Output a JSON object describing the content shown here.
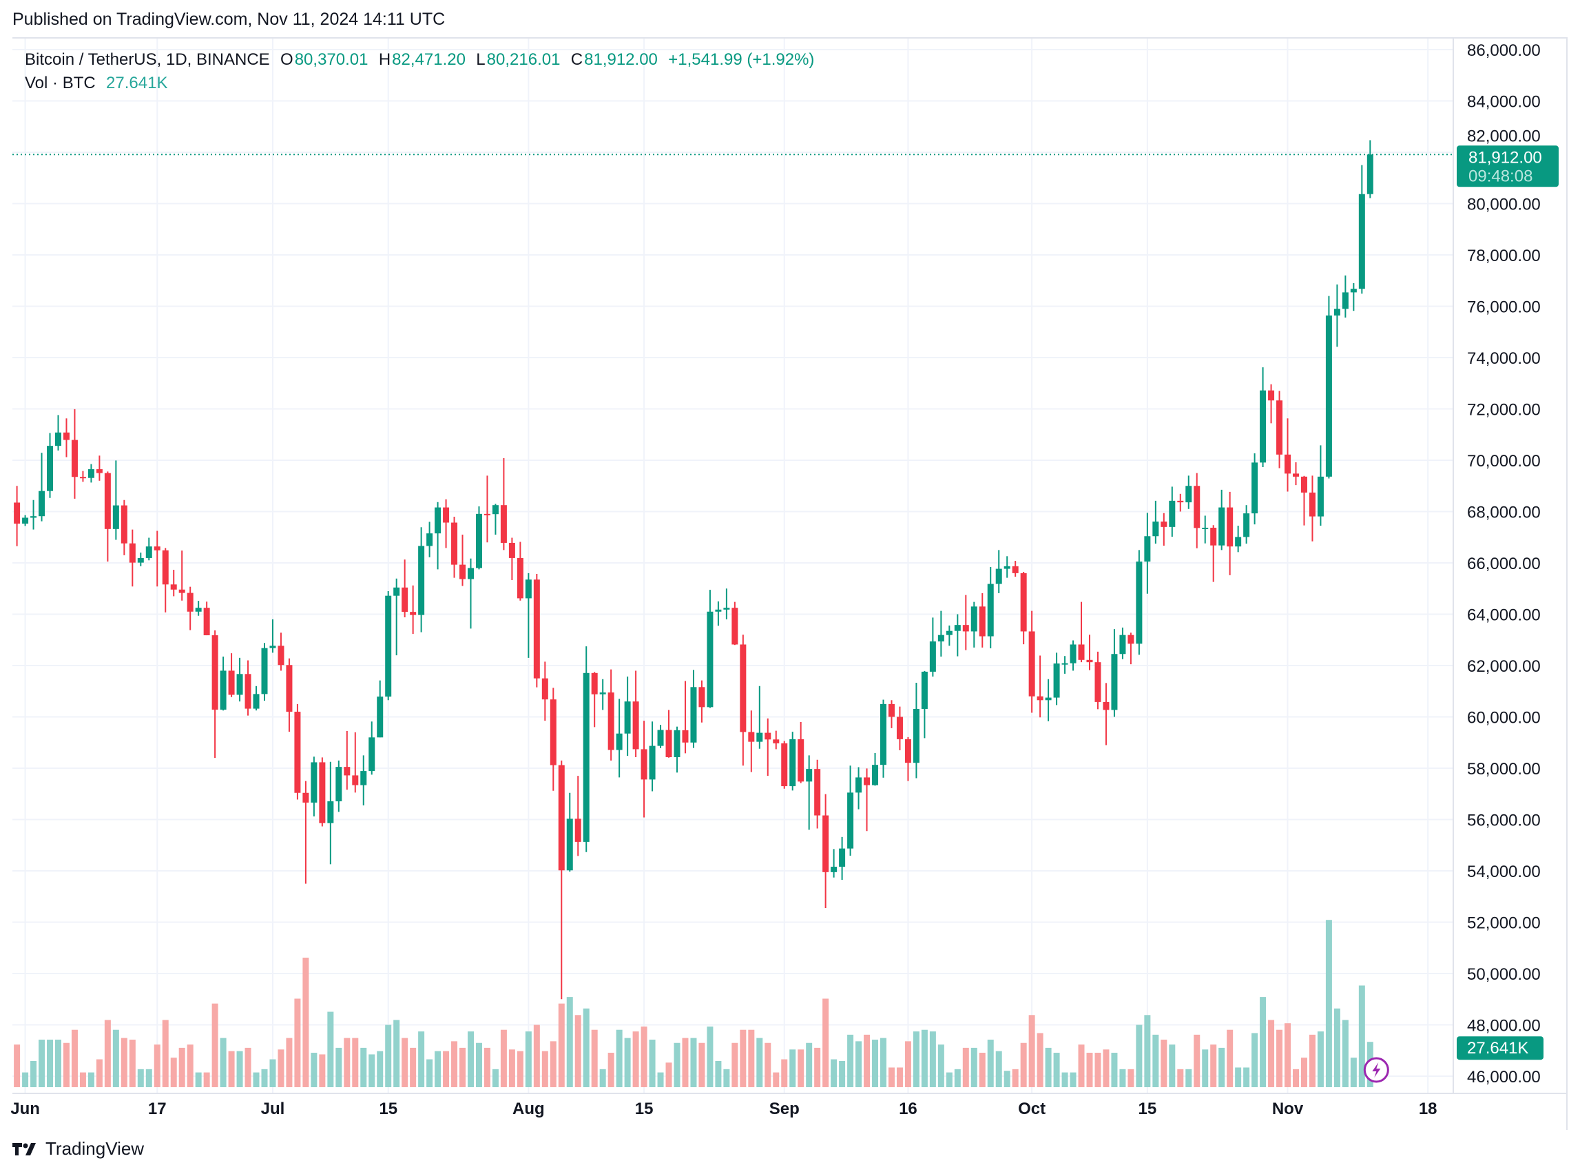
{
  "header": {
    "published": "Published on TradingView.com, Nov 11, 2024 14:11 UTC"
  },
  "legend": {
    "symbol": "Bitcoin / TetherUS, 1D, BINANCE",
    "o_label": "O",
    "o": "80,370.01",
    "h_label": "H",
    "h": "82,471.20",
    "l_label": "L",
    "l": "80,216.01",
    "c_label": "C",
    "c": "81,912.00",
    "change": "+1,541.99 (+1.92%)",
    "vol_label": "Vol · BTC",
    "vol": "27.641K"
  },
  "price_tag": {
    "price": "81,912.00",
    "countdown": "09:48:08"
  },
  "vol_tag": "27.641K",
  "footer": {
    "brand": "TradingView"
  },
  "colors": {
    "up": "#089981",
    "down": "#f23645",
    "vol_up": "#92d2cc",
    "vol_down": "#f7a9a7",
    "grid": "#f0f3fa",
    "accent": "#089981",
    "lightning": "#9c27b0"
  },
  "chart_data": {
    "type": "candlestick",
    "interval": "1D",
    "x_start": "2024-05-31",
    "ylim": [
      46000,
      86000
    ],
    "y_ticks": [
      "86,000.00",
      "84,000.00",
      "82,000.00",
      "80,000.00",
      "78,000.00",
      "76,000.00",
      "74,000.00",
      "72,000.00",
      "70,000.00",
      "68,000.00",
      "66,000.00",
      "64,000.00",
      "62,000.00",
      "60,000.00",
      "58,000.00",
      "56,000.00",
      "54,000.00",
      "52,000.00",
      "50,000.00",
      "48,000.00",
      "46,000.00"
    ],
    "y_tick_values": [
      86000,
      84000,
      82000,
      80000,
      78000,
      76000,
      74000,
      72000,
      70000,
      68000,
      66000,
      64000,
      62000,
      60000,
      58000,
      56000,
      54000,
      52000,
      50000,
      48000,
      46000
    ],
    "x_ticks": [
      {
        "label": "Jun",
        "date": "2024-06-01"
      },
      {
        "label": "17",
        "date": "2024-06-17"
      },
      {
        "label": "Jul",
        "date": "2024-07-01"
      },
      {
        "label": "15",
        "date": "2024-07-15"
      },
      {
        "label": "Aug",
        "date": "2024-08-01"
      },
      {
        "label": "15",
        "date": "2024-08-15"
      },
      {
        "label": "Sep",
        "date": "2024-09-01"
      },
      {
        "label": "16",
        "date": "2024-09-16"
      },
      {
        "label": "Oct",
        "date": "2024-10-01"
      },
      {
        "label": "15",
        "date": "2024-10-15"
      },
      {
        "label": "Nov",
        "date": "2024-11-01"
      },
      {
        "label": "18",
        "date": "2024-11-18"
      }
    ],
    "last_price": 81912.0,
    "ohlc": [
      [
        68350,
        69000,
        66650,
        67530
      ],
      [
        67530,
        67860,
        67440,
        67760
      ],
      [
        67760,
        68450,
        67300,
        67820
      ],
      [
        67820,
        70290,
        67620,
        68800
      ],
      [
        68800,
        71060,
        68530,
        70560
      ],
      [
        70560,
        71760,
        70380,
        71080
      ],
      [
        71080,
        71630,
        70120,
        70790
      ],
      [
        70790,
        71990,
        68500,
        69350
      ],
      [
        69350,
        69580,
        69160,
        69310
      ],
      [
        69310,
        69850,
        69130,
        69650
      ],
      [
        69650,
        70180,
        69200,
        69500
      ],
      [
        69500,
        69560,
        66050,
        67320
      ],
      [
        67320,
        69990,
        66900,
        68240
      ],
      [
        68240,
        68450,
        66300,
        66760
      ],
      [
        66760,
        67300,
        65080,
        66010
      ],
      [
        66010,
        66400,
        65870,
        66190
      ],
      [
        66190,
        66980,
        66100,
        66640
      ],
      [
        66640,
        67250,
        65080,
        66490
      ],
      [
        66490,
        66580,
        64070,
        65160
      ],
      [
        65160,
        65730,
        64700,
        64960
      ],
      [
        64960,
        66480,
        64530,
        64830
      ],
      [
        64830,
        65070,
        63380,
        64100
      ],
      [
        64100,
        64520,
        63940,
        64250
      ],
      [
        64250,
        64490,
        63180,
        63180
      ],
      [
        63180,
        63370,
        58400,
        60280
      ],
      [
        60280,
        62350,
        60250,
        61800
      ],
      [
        61800,
        62480,
        60770,
        60860
      ],
      [
        60860,
        62300,
        60600,
        61670
      ],
      [
        61670,
        62200,
        60050,
        60320
      ],
      [
        60320,
        61200,
        60250,
        60890
      ],
      [
        60890,
        62880,
        60630,
        62680
      ],
      [
        62680,
        63800,
        62500,
        62770
      ],
      [
        62770,
        63280,
        61800,
        62020
      ],
      [
        62020,
        62280,
        59420,
        60200
      ],
      [
        60200,
        60500,
        56780,
        57040
      ],
      [
        57040,
        57500,
        53500,
        56660
      ],
      [
        56660,
        58450,
        56120,
        58230
      ],
      [
        58230,
        58420,
        55730,
        55860
      ],
      [
        55860,
        58250,
        54260,
        56710
      ],
      [
        56710,
        58300,
        56300,
        58050
      ],
      [
        58050,
        59450,
        57160,
        57720
      ],
      [
        57720,
        59400,
        57050,
        57340
      ],
      [
        57340,
        58500,
        56550,
        57890
      ],
      [
        57890,
        59820,
        57750,
        59200
      ],
      [
        59200,
        61420,
        59200,
        60790
      ],
      [
        60790,
        64900,
        60650,
        64720
      ],
      [
        64720,
        65390,
        62400,
        65040
      ],
      [
        65040,
        66130,
        63880,
        64090
      ],
      [
        64090,
        65120,
        63230,
        63970
      ],
      [
        63970,
        67390,
        63300,
        66660
      ],
      [
        66660,
        67600,
        66220,
        67150
      ],
      [
        67150,
        68370,
        65750,
        68160
      ],
      [
        68160,
        68480,
        66580,
        67570
      ],
      [
        67570,
        67800,
        65420,
        65930
      ],
      [
        65930,
        67100,
        65100,
        65370
      ],
      [
        65370,
        66170,
        63440,
        65800
      ],
      [
        65800,
        68200,
        65750,
        67910
      ],
      [
        67910,
        69400,
        66800,
        67900
      ],
      [
        67900,
        68300,
        67100,
        68250
      ],
      [
        68250,
        70080,
        66500,
        66780
      ],
      [
        66780,
        66980,
        65330,
        66190
      ],
      [
        66190,
        66820,
        64530,
        64620
      ],
      [
        64620,
        65600,
        62300,
        65350
      ],
      [
        65350,
        65570,
        61150,
        61500
      ],
      [
        61500,
        62150,
        59850,
        60680
      ],
      [
        60680,
        61130,
        57120,
        58120
      ],
      [
        58120,
        58300,
        49000,
        54020
      ],
      [
        54020,
        57040,
        53970,
        56030
      ],
      [
        56030,
        57700,
        54580,
        55130
      ],
      [
        55130,
        62750,
        54730,
        61710
      ],
      [
        61710,
        61750,
        59600,
        60880
      ],
      [
        60880,
        61470,
        60270,
        60950
      ],
      [
        60950,
        61850,
        58300,
        58710
      ],
      [
        58710,
        60700,
        57640,
        59350
      ],
      [
        59350,
        61570,
        58480,
        60600
      ],
      [
        60600,
        61800,
        58430,
        58740
      ],
      [
        58740,
        59850,
        56080,
        57560
      ],
      [
        57560,
        59820,
        57100,
        58870
      ],
      [
        58870,
        59690,
        58780,
        59490
      ],
      [
        59490,
        60270,
        58410,
        58430
      ],
      [
        58430,
        59620,
        57830,
        59480
      ],
      [
        59480,
        61400,
        58580,
        59000
      ],
      [
        59000,
        61830,
        58790,
        61160
      ],
      [
        61160,
        61420,
        59780,
        60380
      ],
      [
        60380,
        64950,
        60350,
        64100
      ],
      [
        64100,
        64500,
        63550,
        64180
      ],
      [
        64180,
        65000,
        63800,
        64250
      ],
      [
        64250,
        64480,
        62800,
        62820
      ],
      [
        62820,
        63200,
        58100,
        59410
      ],
      [
        59410,
        60250,
        57850,
        59030
      ],
      [
        59030,
        61200,
        58760,
        59380
      ],
      [
        59380,
        59940,
        57700,
        59120
      ],
      [
        59120,
        59460,
        58740,
        58970
      ],
      [
        58970,
        59060,
        57200,
        57300
      ],
      [
        57300,
        59420,
        57130,
        59130
      ],
      [
        59130,
        59800,
        57420,
        57480
      ],
      [
        57480,
        58500,
        55600,
        57970
      ],
      [
        57970,
        58330,
        55650,
        56160
      ],
      [
        56160,
        56990,
        52550,
        53950
      ],
      [
        53950,
        54850,
        53740,
        54160
      ],
      [
        54160,
        55320,
        53650,
        54870
      ],
      [
        54870,
        58100,
        54590,
        57050
      ],
      [
        57050,
        58040,
        56400,
        57640
      ],
      [
        57640,
        57990,
        55550,
        57340
      ],
      [
        57340,
        58590,
        57320,
        58130
      ],
      [
        58130,
        60670,
        57630,
        60500
      ],
      [
        60500,
        60650,
        59560,
        60000
      ],
      [
        60000,
        60400,
        58700,
        59130
      ],
      [
        59130,
        59210,
        57500,
        58210
      ],
      [
        58210,
        61330,
        57610,
        60310
      ],
      [
        60310,
        61790,
        59170,
        61760
      ],
      [
        61760,
        63870,
        61570,
        62940
      ],
      [
        62940,
        64130,
        62350,
        63190
      ],
      [
        63190,
        63560,
        62770,
        63350
      ],
      [
        63350,
        64000,
        62360,
        63580
      ],
      [
        63580,
        64750,
        62600,
        63330
      ],
      [
        63330,
        64480,
        62700,
        64300
      ],
      [
        64300,
        64820,
        62700,
        63140
      ],
      [
        63140,
        65840,
        62670,
        65180
      ],
      [
        65180,
        66500,
        64820,
        65770
      ],
      [
        65770,
        66260,
        65420,
        65870
      ],
      [
        65870,
        66080,
        65460,
        65600
      ],
      [
        65600,
        65650,
        62830,
        63330
      ],
      [
        63330,
        64130,
        60160,
        60800
      ],
      [
        60800,
        62390,
        59980,
        60650
      ],
      [
        60650,
        61470,
        59830,
        60750
      ],
      [
        60750,
        62500,
        60460,
        62080
      ],
      [
        62080,
        62370,
        61680,
        62090
      ],
      [
        62090,
        62980,
        61800,
        62820
      ],
      [
        62820,
        64480,
        62130,
        62220
      ],
      [
        62220,
        63200,
        61820,
        62130
      ],
      [
        62130,
        62540,
        60300,
        60580
      ],
      [
        60580,
        61320,
        58900,
        60270
      ],
      [
        60270,
        63420,
        60000,
        62450
      ],
      [
        62450,
        63480,
        62250,
        63190
      ],
      [
        63190,
        63280,
        62050,
        62850
      ],
      [
        62850,
        66500,
        62420,
        66050
      ],
      [
        66050,
        67950,
        64800,
        67040
      ],
      [
        67040,
        68420,
        66750,
        67610
      ],
      [
        67610,
        67940,
        66670,
        67400
      ],
      [
        67400,
        68970,
        67020,
        68420
      ],
      [
        68420,
        68690,
        68000,
        68360
      ],
      [
        68360,
        69400,
        68100,
        69000
      ],
      [
        69000,
        69500,
        66570,
        67360
      ],
      [
        67360,
        67840,
        66760,
        67370
      ],
      [
        67370,
        67470,
        65260,
        66680
      ],
      [
        66680,
        68850,
        66500,
        68160
      ],
      [
        68160,
        68770,
        65520,
        66640
      ],
      [
        66640,
        67450,
        66420,
        67010
      ],
      [
        67010,
        68250,
        66750,
        67930
      ],
      [
        67930,
        70270,
        67500,
        69910
      ],
      [
        69910,
        73620,
        69730,
        72720
      ],
      [
        72720,
        72960,
        71440,
        72330
      ],
      [
        72330,
        72700,
        69690,
        70220
      ],
      [
        70220,
        71630,
        68780,
        69480
      ],
      [
        69480,
        69920,
        69030,
        69360
      ],
      [
        69360,
        69390,
        67460,
        68740
      ],
      [
        68740,
        69400,
        66840,
        67810
      ],
      [
        67810,
        70580,
        67450,
        69360
      ],
      [
        69360,
        76400,
        69290,
        75640
      ],
      [
        75640,
        76850,
        74420,
        75900
      ],
      [
        75900,
        77200,
        75560,
        76540
      ],
      [
        76540,
        76900,
        75820,
        76680
      ],
      [
        76680,
        81500,
        76490,
        80370
      ],
      [
        80370.01,
        82471.2,
        80216.01,
        81912.0
      ]
    ],
    "volume_k": [
      26,
      9,
      16,
      29,
      29,
      29,
      27,
      35,
      9,
      9,
      17,
      41,
      35,
      30,
      29,
      11,
      11,
      26,
      41,
      18,
      24,
      26,
      9,
      9,
      51,
      30,
      22,
      22,
      24,
      9,
      11,
      17,
      23,
      30,
      54,
      79,
      21,
      20,
      46,
      24,
      30,
      30,
      24,
      20,
      22,
      38,
      41,
      30,
      24,
      34,
      17,
      22,
      22,
      28,
      24,
      34,
      27,
      24,
      11,
      35,
      23,
      22,
      34,
      38,
      22,
      28,
      51,
      55,
      44,
      48,
      35,
      11,
      21,
      35,
      30,
      34,
      37,
      29,
      9,
      15,
      27,
      30,
      30,
      27,
      37,
      16,
      11,
      27,
      35,
      35,
      30,
      27,
      9,
      17,
      23,
      23,
      27,
      24,
      54,
      17,
      16,
      32,
      28,
      32,
      29,
      30,
      12,
      12,
      28,
      34,
      35,
      34,
      26,
      9,
      11,
      24,
      24,
      21,
      29,
      22,
      10,
      11,
      27,
      44,
      33,
      24,
      21,
      9,
      9,
      26,
      21,
      21,
      23,
      21,
      11,
      11,
      38,
      44,
      32,
      29,
      26,
      11,
      11,
      32,
      23,
      26,
      24,
      35,
      12,
      12,
      33,
      55,
      41,
      35,
      39,
      11,
      18,
      32,
      34,
      102,
      48,
      41,
      18,
      62,
      27.641
    ]
  }
}
